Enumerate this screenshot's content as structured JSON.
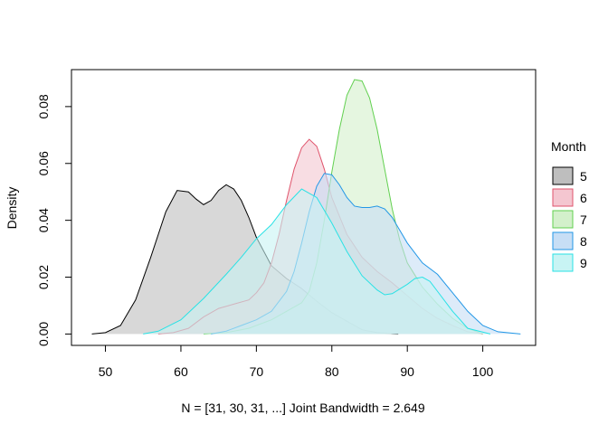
{
  "chart_data": {
    "type": "area",
    "title": "",
    "xlabel": "N = [31, 30, 31, ...]   Joint Bandwidth = 2.649",
    "ylabel": "Density",
    "xlim": [
      45.5,
      107
    ],
    "ylim": [
      -0.004,
      0.093
    ],
    "x_ticks": [
      50,
      60,
      70,
      80,
      90,
      100
    ],
    "x_tick_labels": [
      "50",
      "60",
      "70",
      "80",
      "90",
      "100"
    ],
    "y_ticks": [
      0.0,
      0.02,
      0.04,
      0.06,
      0.08
    ],
    "y_tick_labels": [
      "0.00",
      "0.02",
      "0.04",
      "0.06",
      "0.08"
    ],
    "grid": false,
    "legend": {
      "title": "Month",
      "position": "right",
      "entries": [
        "5",
        "6",
        "7",
        "8",
        "9"
      ]
    },
    "series": [
      {
        "name": "5",
        "stroke": "#000000",
        "fill": "#bebebe",
        "x": [
          48.2,
          50,
          52,
          54,
          56,
          58,
          59.5,
          61,
          62,
          63,
          64,
          65,
          66,
          67,
          68,
          69,
          70,
          72,
          74,
          76,
          78,
          80,
          82,
          84,
          86,
          88,
          88.8
        ],
        "y": [
          0.0,
          0.0005,
          0.003,
          0.012,
          0.027,
          0.043,
          0.0505,
          0.05,
          0.0475,
          0.0455,
          0.047,
          0.0505,
          0.0525,
          0.051,
          0.047,
          0.041,
          0.034,
          0.024,
          0.0195,
          0.016,
          0.0115,
          0.0075,
          0.0045,
          0.0015,
          0.0005,
          0.0001,
          0.0
        ]
      },
      {
        "name": "6",
        "stroke": "#df536b",
        "fill": "#f4c6d0",
        "x": [
          57,
          59,
          61,
          63,
          65,
          67,
          69,
          70,
          71,
          72,
          73,
          74,
          75,
          76,
          77,
          78,
          79,
          80,
          82,
          84,
          86,
          88,
          90,
          92,
          94,
          96,
          98,
          100
        ],
        "y": [
          0.0,
          0.0005,
          0.002,
          0.006,
          0.009,
          0.0105,
          0.012,
          0.0145,
          0.018,
          0.025,
          0.035,
          0.047,
          0.058,
          0.0655,
          0.0685,
          0.066,
          0.058,
          0.048,
          0.035,
          0.027,
          0.022,
          0.018,
          0.0135,
          0.009,
          0.0055,
          0.003,
          0.0008,
          0.0
        ]
      },
      {
        "name": "7",
        "stroke": "#61d04f",
        "fill": "#d3f0cb",
        "x": [
          63,
          66,
          69,
          72,
          74,
          76,
          77,
          78,
          79,
          80,
          81,
          82,
          83,
          84,
          85,
          86,
          87,
          88,
          89,
          90,
          92,
          94,
          96,
          98,
          100
        ],
        "y": [
          0.0,
          0.0005,
          0.002,
          0.005,
          0.008,
          0.011,
          0.015,
          0.025,
          0.04,
          0.057,
          0.072,
          0.084,
          0.0895,
          0.089,
          0.083,
          0.072,
          0.058,
          0.044,
          0.033,
          0.025,
          0.0165,
          0.0105,
          0.0055,
          0.002,
          0.0
        ]
      },
      {
        "name": "8",
        "stroke": "#2297e6",
        "fill": "#c7def5",
        "x": [
          64,
          66,
          68,
          70,
          72,
          74,
          75,
          76,
          77,
          78,
          79,
          80,
          81,
          82,
          83,
          84,
          85,
          86,
          87,
          88,
          90,
          92,
          94,
          96,
          98,
          100,
          102,
          105
        ],
        "y": [
          0.0,
          0.001,
          0.003,
          0.005,
          0.008,
          0.015,
          0.022,
          0.032,
          0.043,
          0.052,
          0.0565,
          0.056,
          0.0525,
          0.048,
          0.045,
          0.0445,
          0.0445,
          0.045,
          0.044,
          0.041,
          0.032,
          0.025,
          0.021,
          0.0145,
          0.008,
          0.003,
          0.0008,
          0.0
        ]
      },
      {
        "name": "9",
        "stroke": "#28e2e5",
        "fill": "#c8f4f4",
        "x": [
          55,
          57,
          60,
          63,
          66,
          68,
          70,
          72,
          74,
          76,
          78,
          80,
          82,
          84,
          86,
          87,
          88,
          90,
          91,
          92,
          93,
          94,
          96,
          98,
          101
        ],
        "y": [
          0.0,
          0.001,
          0.005,
          0.0125,
          0.021,
          0.027,
          0.0335,
          0.0385,
          0.0455,
          0.051,
          0.048,
          0.039,
          0.029,
          0.0205,
          0.0155,
          0.0138,
          0.0142,
          0.0175,
          0.0195,
          0.02,
          0.0185,
          0.015,
          0.008,
          0.002,
          0.0
        ]
      }
    ]
  }
}
